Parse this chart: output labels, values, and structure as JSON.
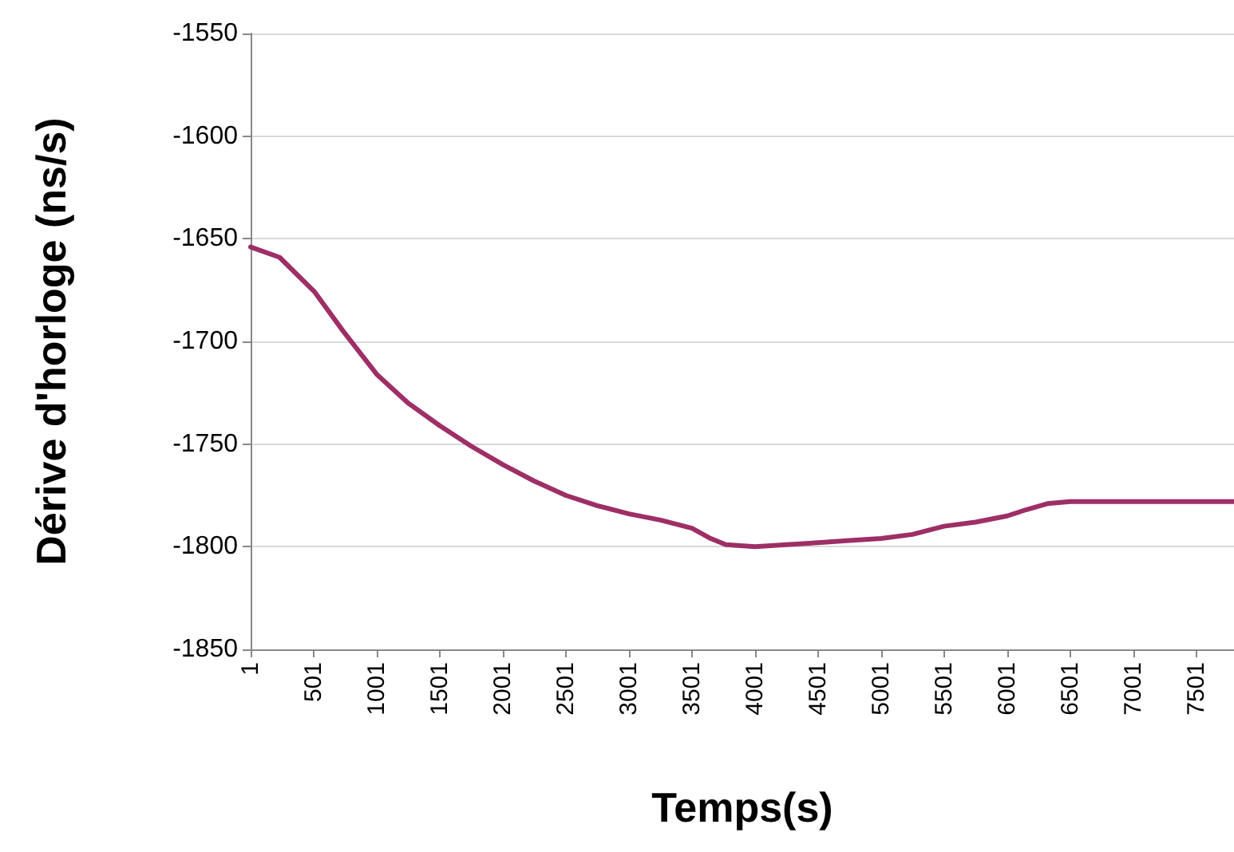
{
  "chart_data": {
    "type": "line",
    "xlabel": "Temps(s)",
    "ylabel": "Dérive d'horloge (ns/s)",
    "x": [
      1,
      230,
      510,
      735,
      1001,
      1250,
      1500,
      1750,
      2001,
      2250,
      2501,
      2750,
      3001,
      3250,
      3501,
      3650,
      3770,
      4001,
      4250,
      4501,
      4750,
      5001,
      5250,
      5501,
      5750,
      6001,
      6150,
      6320,
      6500,
      6750,
      7001,
      7250,
      7500,
      7800
    ],
    "series": [
      {
        "color": "#9e2f66",
        "values": [
          -1654,
          -1659,
          -1676,
          -1695,
          -1716,
          -1730,
          -1741,
          -1751,
          -1760,
          -1768,
          -1775,
          -1780,
          -1784,
          -1787,
          -1791,
          -1796,
          -1799,
          -1800,
          -1799,
          -1798,
          -1797,
          -1796,
          -1794,
          -1790,
          -1788,
          -1785,
          -1782,
          -1779,
          -1778,
          -1778,
          -1778,
          -1778,
          -1778,
          -1778
        ]
      }
    ],
    "xlim": [
      1,
      7800
    ],
    "xticks": [
      1,
      501,
      1001,
      1501,
      2001,
      2501,
      3001,
      3501,
      4001,
      4501,
      5001,
      5501,
      6001,
      6501,
      7001,
      7501
    ],
    "ylim": [
      -1850,
      -1550
    ],
    "yticks": [
      -1850,
      -1800,
      -1750,
      -1700,
      -1650,
      -1600,
      -1550
    ],
    "grid": "y",
    "marker": "none",
    "line_style": "solid"
  }
}
